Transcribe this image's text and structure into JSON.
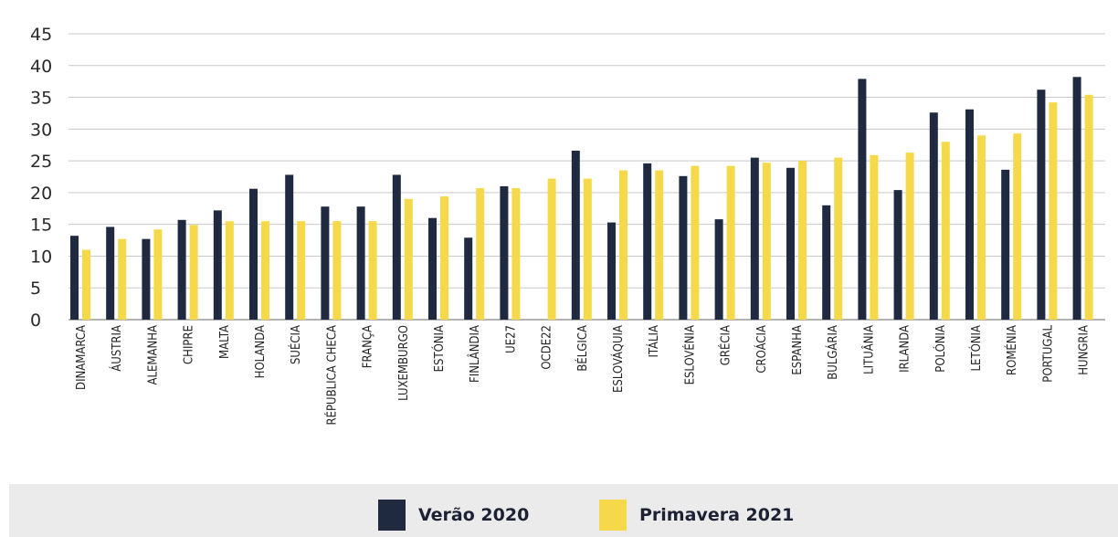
{
  "chart_data": {
    "type": "bar",
    "categories": [
      "DINAMARCA",
      "ÁUSTRIA",
      "ALEMANHA",
      "CHIPRE",
      "MALTA",
      "HOLANDA",
      "SUÉCIA",
      "RÉPUBLICA CHECA",
      "FRANÇA",
      "LUXEMBURGO",
      "ESTÓNIA",
      "FINLÂNDIA",
      "UE27",
      "OCDE22",
      "BÉLGICA",
      "ESLOVÁQUIA",
      "ITÁLIA",
      "ESLOVÉNIA",
      "GRÉCIA",
      "CROÁCIA",
      "ESPANHA",
      "BULGÁRIA",
      "LITUÂNIA",
      "IRLANDA",
      "POLÓNIA",
      "LETÓNIA",
      "ROMÉNIA",
      "PORTUGAL",
      "HUNGRIA"
    ],
    "series": [
      {
        "name": "Verão 2020",
        "color": "#1f2940",
        "values": [
          13.2,
          14.6,
          12.7,
          15.7,
          17.2,
          20.6,
          22.8,
          17.8,
          17.8,
          22.8,
          16,
          12.9,
          21,
          null,
          26.6,
          15.3,
          24.6,
          22.6,
          15.8,
          25.5,
          23.9,
          18,
          37.9,
          20.4,
          32.6,
          33.1,
          23.6,
          36.2,
          38.2
        ]
      },
      {
        "name": "Primavera 2021",
        "color": "#f5d94a",
        "values": [
          11,
          12.7,
          14.2,
          14.9,
          15.5,
          15.5,
          15.5,
          15.5,
          15.5,
          19,
          19.4,
          20.7,
          20.7,
          22.2,
          22.2,
          23.5,
          23.5,
          24.2,
          24.2,
          24.7,
          25,
          25.5,
          25.9,
          26.3,
          28,
          29,
          29.3,
          34.2,
          35.4
        ]
      }
    ],
    "yticks": [
      0,
      5,
      10,
      15,
      20,
      25,
      30,
      35,
      40,
      45
    ],
    "ylim": [
      0,
      45
    ],
    "grid": true,
    "legend_position": "bottom-center"
  },
  "legend": {
    "items": [
      {
        "label": "Verão 2020",
        "color": "#1f2940"
      },
      {
        "label": "Primavera 2021",
        "color": "#f5d94a"
      }
    ]
  }
}
